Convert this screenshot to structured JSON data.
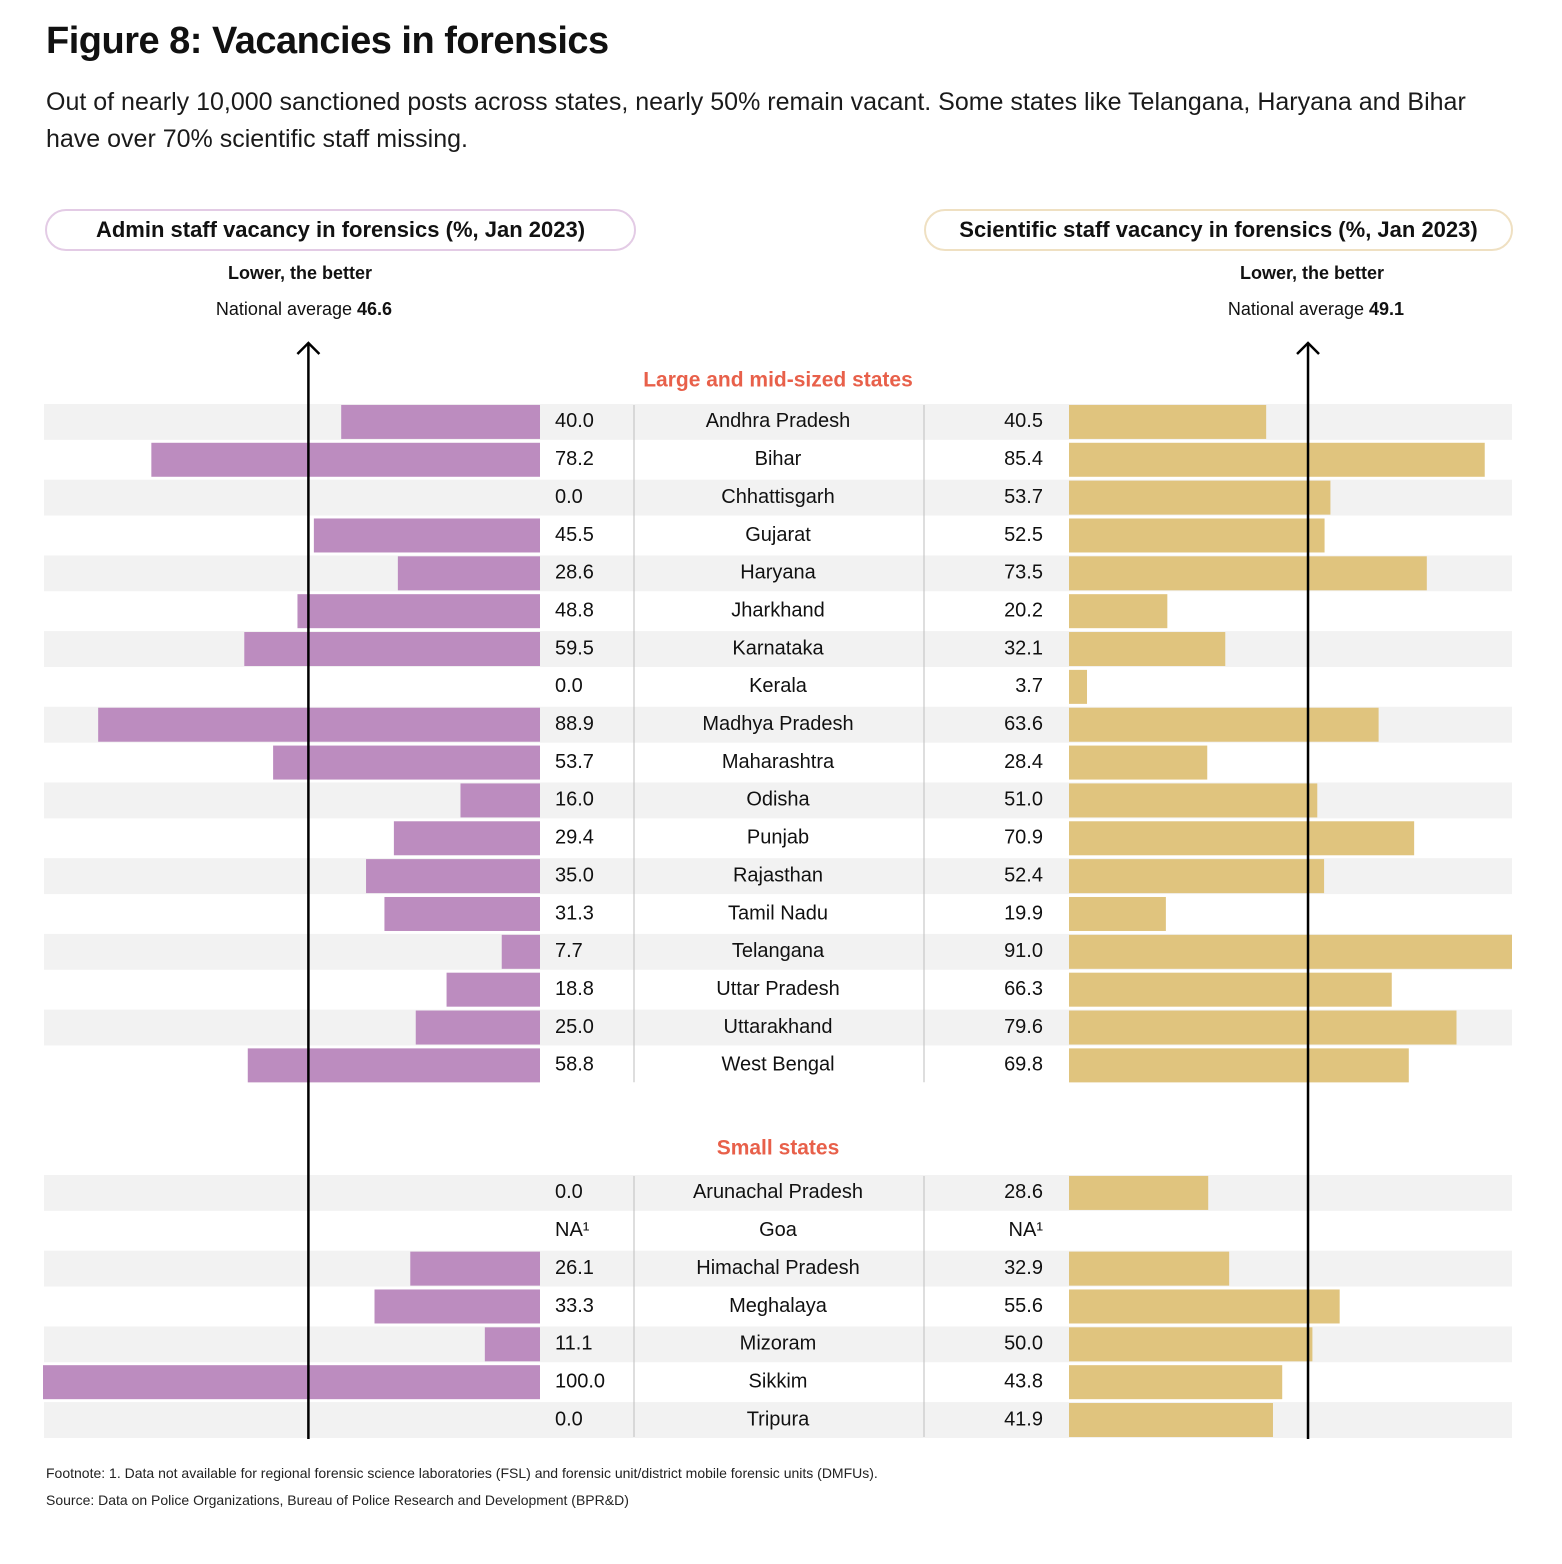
{
  "title": "Figure 8: Vacancies in forensics",
  "subtitle": "Out of nearly 10,000 sanctioned posts across states, nearly 50% remain vacant. Some states like Telangana, Haryana and Bihar have over 70% scientific staff missing.",
  "left_panel": {
    "heading": "Admin staff vacancy in forensics (%, Jan 2023)",
    "note": "Lower, the better",
    "avg_label": "National average",
    "avg_value": "46.6"
  },
  "right_panel": {
    "heading": "Scientific staff vacancy in forensics (%, Jan 2023)",
    "note": "Lower, the better",
    "avg_label": "National average",
    "avg_value": "49.1"
  },
  "footnote": "Footnote: 1. Data not available for regional forensic science laboratories (FSL) and forensic unit/district mobile forensic units (DMFUs).",
  "source": "Source: Data on Police Organizations, Bureau of Police Research and Development (BPR&D)",
  "colors": {
    "admin": "#bc8cbf",
    "scientific": "#e0c47e",
    "group_label": "#e8604a",
    "stripe": "#f2f2f2"
  },
  "chart_data": [
    {
      "type": "bar",
      "title": "Admin staff vacancy in forensics (%, Jan 2023)",
      "orientation": "horizontal",
      "xlim": [
        0,
        100
      ],
      "reference_line": 46.6,
      "groups": [
        {
          "name": "Large and mid-sized states",
          "categories": [
            "Andhra Pradesh",
            "Bihar",
            "Chhattisgarh",
            "Gujarat",
            "Haryana",
            "Jharkhand",
            "Karnataka",
            "Kerala",
            "Madhya Pradesh",
            "Maharashtra",
            "Odisha",
            "Punjab",
            "Rajasthan",
            "Tamil Nadu",
            "Telangana",
            "Uttar Pradesh",
            "Uttarakhand",
            "West Bengal"
          ],
          "values": [
            40.0,
            78.2,
            0.0,
            45.5,
            28.6,
            48.8,
            59.5,
            0.0,
            88.9,
            53.7,
            16.0,
            29.4,
            35.0,
            31.3,
            7.7,
            18.8,
            25.0,
            58.8
          ],
          "labels": [
            "40.0",
            "78.2",
            "0.0",
            "45.5",
            "28.6",
            "48.8",
            "59.5",
            "0.0",
            "88.9",
            "53.7",
            "16.0",
            "29.4",
            "35.0",
            "31.3",
            "7.7",
            "18.8",
            "25.0",
            "58.8"
          ]
        },
        {
          "name": "Small states",
          "categories": [
            "Arunachal Pradesh",
            "Goa",
            "Himachal Pradesh",
            "Meghalaya",
            "Mizoram",
            "Sikkim",
            "Tripura"
          ],
          "values": [
            0.0,
            null,
            26.1,
            33.3,
            11.1,
            100.0,
            0.0
          ],
          "labels": [
            "0.0",
            "NA¹",
            "26.1",
            "33.3",
            "11.1",
            "100.0",
            "0.0"
          ]
        }
      ]
    },
    {
      "type": "bar",
      "title": "Scientific staff vacancy in forensics (%, Jan 2023)",
      "orientation": "horizontal",
      "xlim": [
        0,
        91
      ],
      "reference_line": 49.1,
      "groups": [
        {
          "name": "Large and mid-sized states",
          "categories": [
            "Andhra Pradesh",
            "Bihar",
            "Chhattisgarh",
            "Gujarat",
            "Haryana",
            "Jharkhand",
            "Karnataka",
            "Kerala",
            "Madhya Pradesh",
            "Maharashtra",
            "Odisha",
            "Punjab",
            "Rajasthan",
            "Tamil Nadu",
            "Telangana",
            "Uttar Pradesh",
            "Uttarakhand",
            "West Bengal"
          ],
          "values": [
            40.5,
            85.4,
            53.7,
            52.5,
            73.5,
            20.2,
            32.1,
            3.7,
            63.6,
            28.4,
            51.0,
            70.9,
            52.4,
            19.9,
            91.0,
            66.3,
            79.6,
            69.8
          ],
          "labels": [
            "40.5",
            "85.4",
            "53.7",
            "52.5",
            "73.5",
            "20.2",
            "32.1",
            "3.7",
            "63.6",
            "28.4",
            "51.0",
            "70.9",
            "52.4",
            "19.9",
            "91.0",
            "66.3",
            "79.6",
            "69.8"
          ]
        },
        {
          "name": "Small states",
          "categories": [
            "Arunachal Pradesh",
            "Goa",
            "Himachal Pradesh",
            "Meghalaya",
            "Mizoram",
            "Sikkim",
            "Tripura"
          ],
          "values": [
            28.6,
            null,
            32.9,
            55.6,
            50.0,
            43.8,
            41.9
          ],
          "labels": [
            "28.6",
            "NA¹",
            "32.9",
            "55.6",
            "50.0",
            "43.8",
            "41.9"
          ]
        }
      ]
    }
  ]
}
